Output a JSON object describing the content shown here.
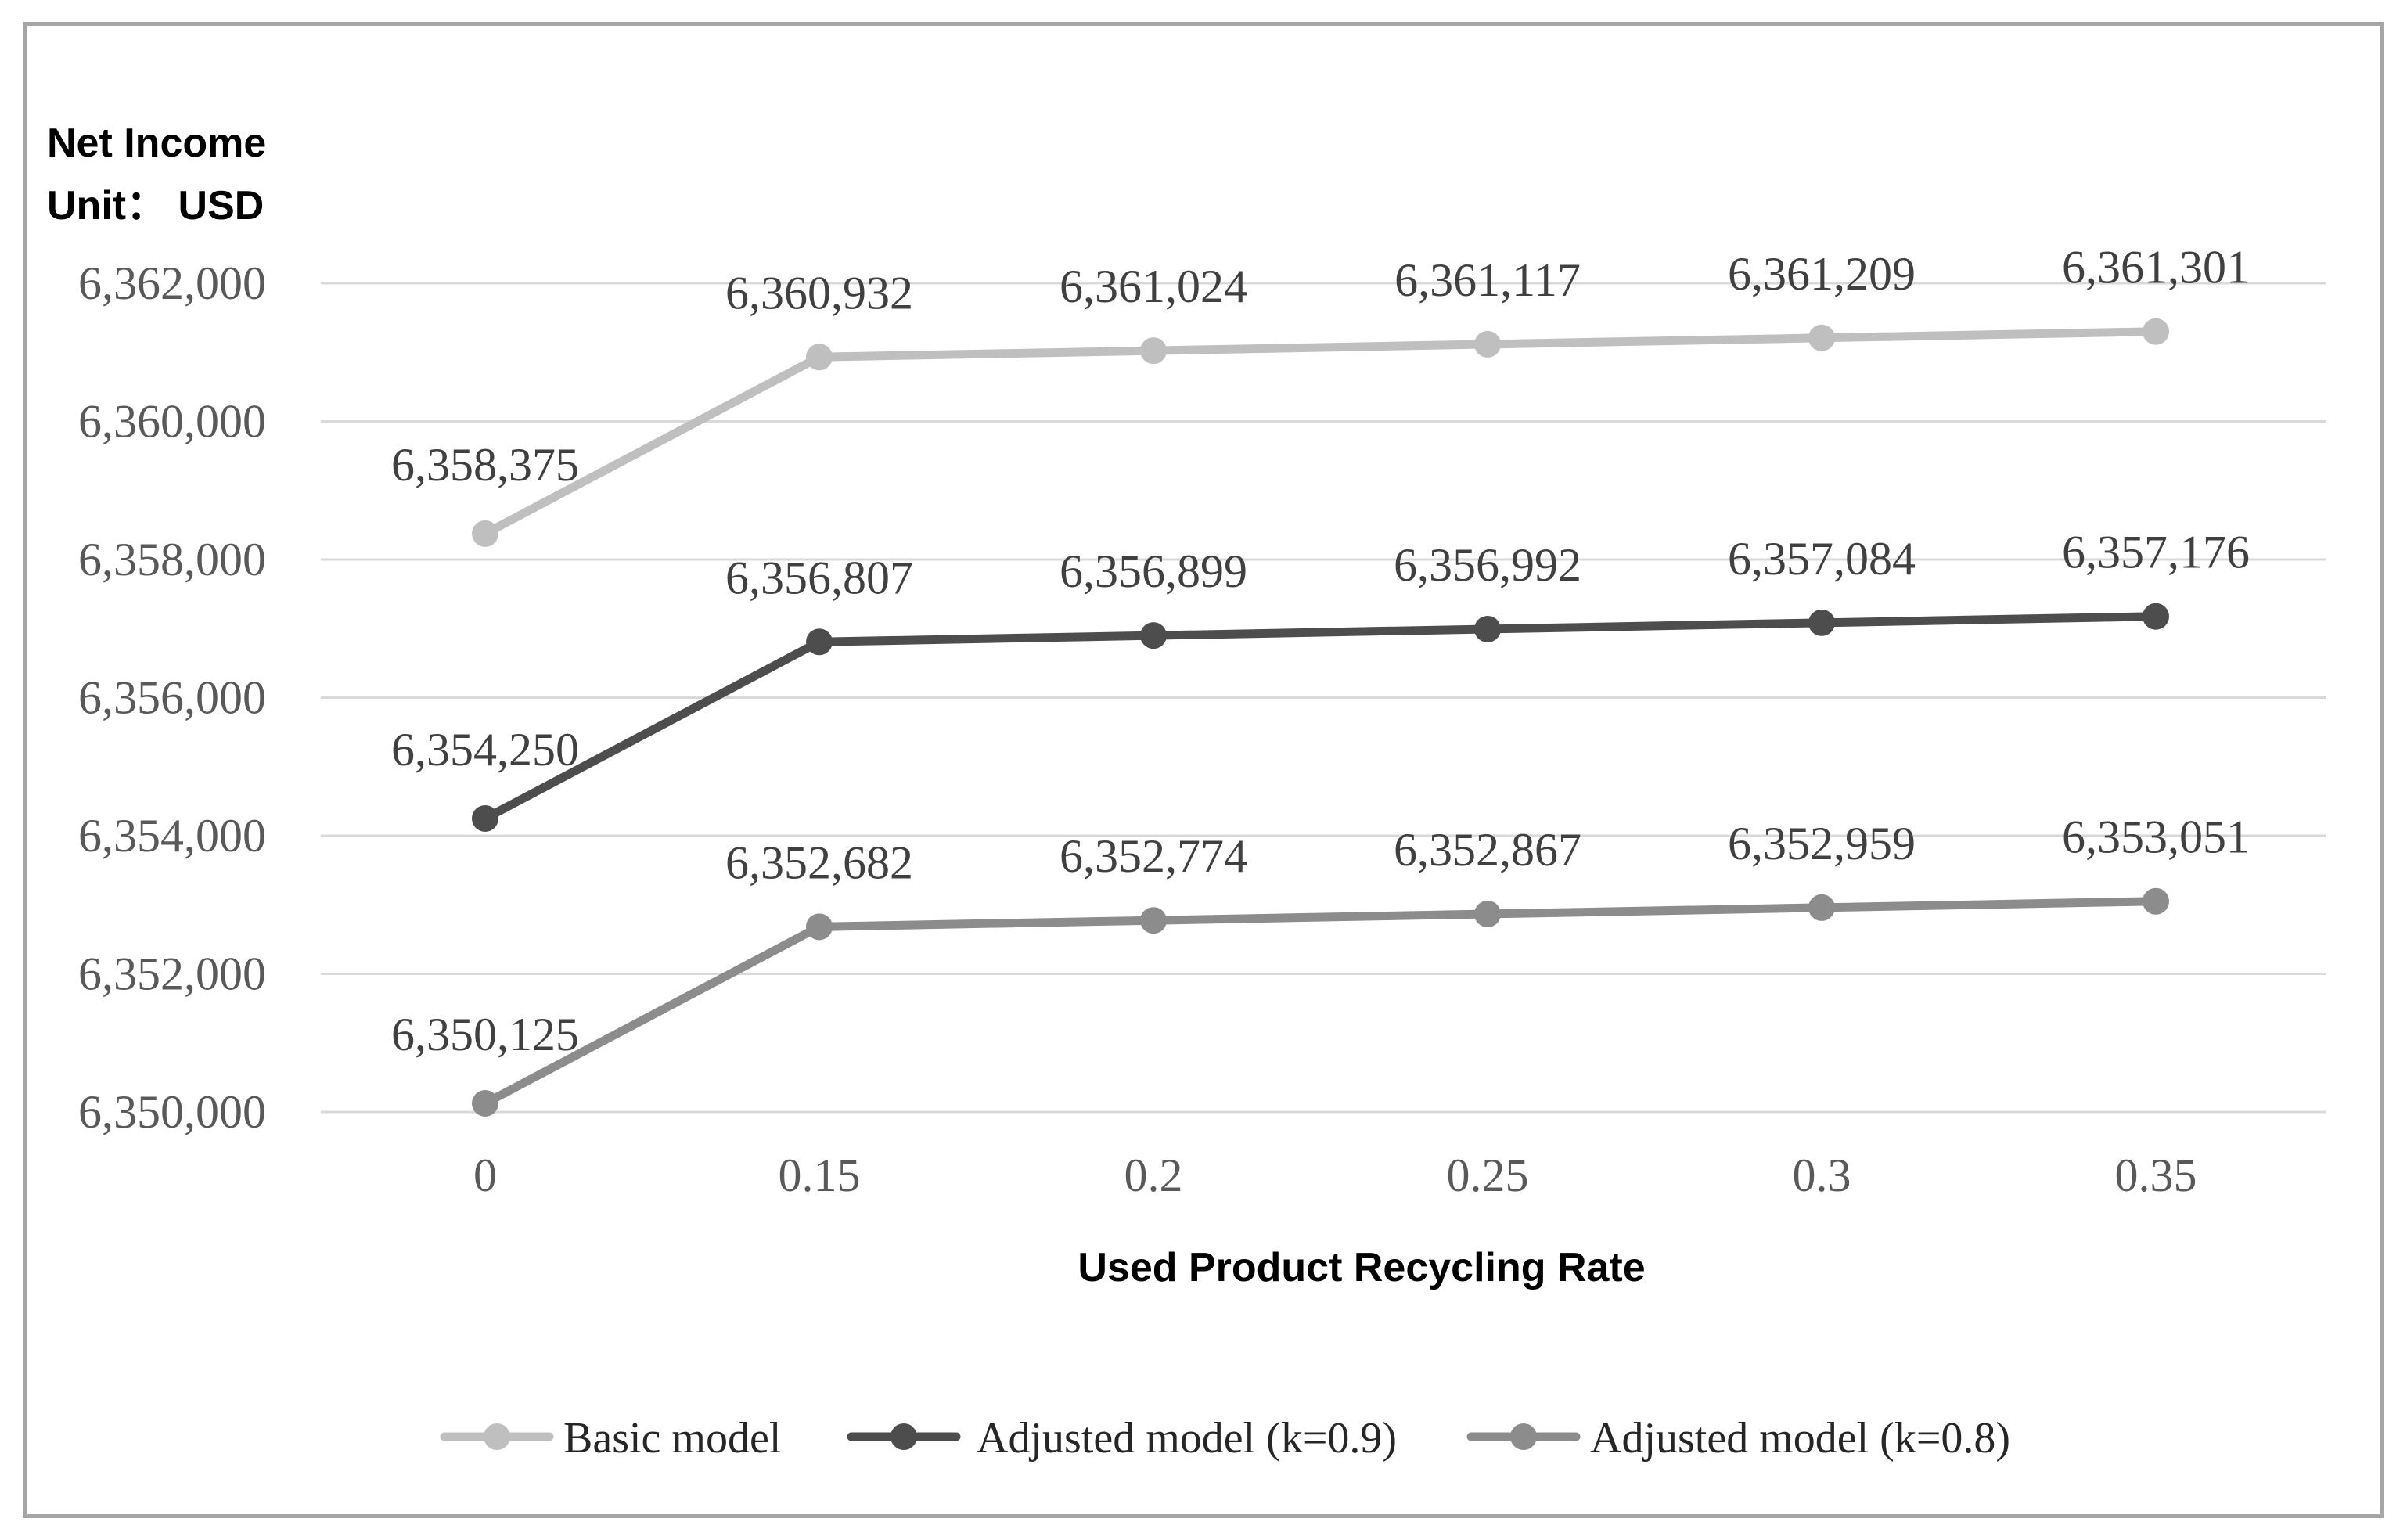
{
  "chart_data": {
    "type": "line",
    "ylabel": "Net Income",
    "yunit": "Unit： USD",
    "xlabel": "Used Product Recycling Rate",
    "categories": [
      "0",
      "0.15",
      "0.2",
      "0.25",
      "0.3",
      "0.35"
    ],
    "ylim": [
      6350000,
      6362000
    ],
    "yticks": [
      6350000,
      6352000,
      6354000,
      6356000,
      6358000,
      6360000,
      6362000
    ],
    "ytick_labels": [
      "6,350,000",
      "6,352,000",
      "6,354,000",
      "6,356,000",
      "6,358,000",
      "6,360,000",
      "6,362,000"
    ],
    "grid": true,
    "legend_position": "bottom",
    "series": [
      {
        "name": "Basic model",
        "color": "#bfbfbf",
        "values": [
          6358375,
          6360932,
          6361024,
          6361117,
          6361209,
          6361301
        ],
        "labels": [
          "6,358,375",
          "6,360,932",
          "6,361,024",
          "6,361,117",
          "6,361,209",
          "6,361,301"
        ]
      },
      {
        "name": "Adjusted model (k=0.9)",
        "color": "#4d4d4d",
        "values": [
          6354250,
          6356807,
          6356899,
          6356992,
          6357084,
          6357176
        ],
        "labels": [
          "6,354,250",
          "6,356,807",
          "6,356,899",
          "6,356,992",
          "6,357,084",
          "6,357,176"
        ]
      },
      {
        "name": "Adjusted model (k=0.8)",
        "color": "#8c8c8c",
        "values": [
          6350125,
          6352682,
          6352774,
          6352867,
          6352959,
          6353051
        ],
        "labels": [
          "6,350,125",
          "6,352,682",
          "6,352,774",
          "6,352,867",
          "6,352,959",
          "6,353,051"
        ]
      }
    ]
  }
}
